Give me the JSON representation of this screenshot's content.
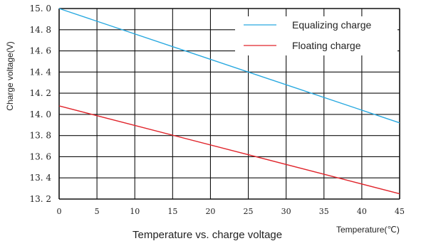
{
  "chart_data": {
    "type": "line",
    "title": "Temperature vs. charge voltage",
    "xlabel": "Temperature(℃)",
    "ylabel": "Charge voltage(V)",
    "xlim": [
      0,
      45
    ],
    "ylim": [
      13.2,
      15.0
    ],
    "x_ticks": [
      "0",
      "5",
      "10",
      "15",
      "20",
      "25",
      "30",
      "35",
      "40",
      "45"
    ],
    "y_ticks": [
      "15. 0",
      "14. 8",
      "14. 6",
      "14. 4",
      "14. 2",
      "14. 0",
      "13. 8",
      "13. 6",
      "13. 4",
      "13. 2"
    ],
    "grid": true,
    "legend_position": "top-right",
    "series": [
      {
        "name": "Equalizing charge",
        "color": "#29a9e0",
        "x": [
          0,
          45
        ],
        "y": [
          15.0,
          13.92
        ]
      },
      {
        "name": "Floating charge",
        "color": "#e0242b",
        "x": [
          0,
          45
        ],
        "y": [
          14.08,
          13.25
        ]
      }
    ]
  }
}
